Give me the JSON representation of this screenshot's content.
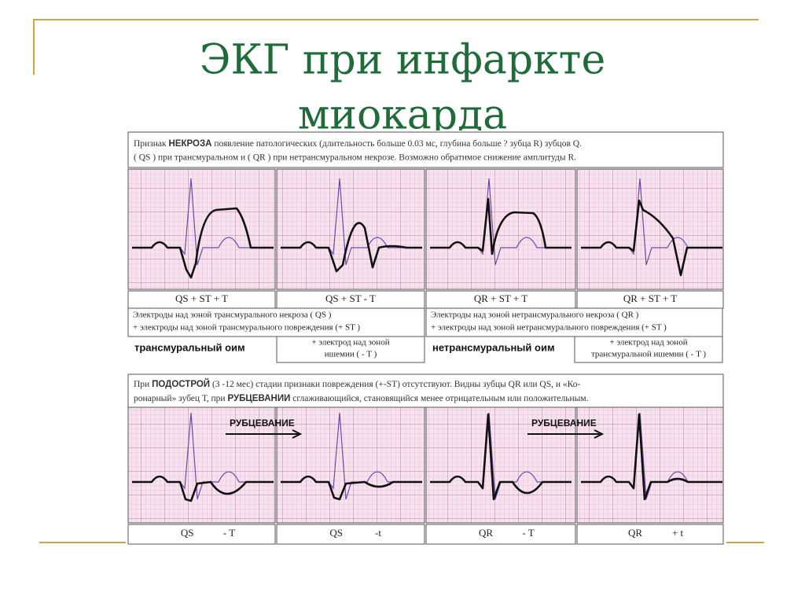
{
  "title": [
    "ЭКГ при инфаркте",
    "миокарда"
  ],
  "necrosis_note": {
    "line1": [
      "Признак ",
      "НЕКРОЗА",
      " появление патологических (длительность больше 0.03 мс, глубина больше ? зубца R) зубцов Q."
    ],
    "line2": "( QS ) при трансмуральном и ( QR ) при нетрансмуральном некрозе. Возможно обратимое  снижение амплитуды R."
  },
  "acute_labels": [
    "QS + ST + T",
    "QS + ST - T",
    "QR + ST + T",
    "QR + ST + T"
  ],
  "transmural": {
    "electrodes": [
      "Электроды над зоной трансмурального некроза ( QS )",
      "+ электроды над зоной трансмурального повреждения (+ ST )"
    ],
    "name": "трансмуральный оим",
    "ischemia": [
      "+ электрод над зоной",
      "ишемии ( - T )"
    ]
  },
  "nontransmural": {
    "electrodes": [
      "Электроды над зоной нетрансмурального некроза ( QR )",
      "+ электроды над зоной нетрансмурального повреждения (+ ST )"
    ],
    "name": "нетрансмуральный оим",
    "ischemia": [
      "+ электрод над зоной",
      "трансмуральной ишемии ( - T )"
    ]
  },
  "subacute_note": {
    "line1": [
      "При ",
      "ПОДОСТРОЙ",
      " (3 -12 мес) стадии признаки повреждения (+-ST) отсутствуют. Видны зубцы QR или QS, и «Ко-"
    ],
    "line2": [
      "ронарный» зубец Т, при ",
      "РУБЦЕВАНИИ",
      " сглаживающийся, становящийся менее отрицательным или положительным."
    ]
  },
  "scarring": [
    "РУБЦЕВАНИЕ",
    "РУБЦЕВАНИЕ"
  ],
  "subacute_labels": [
    [
      "QS",
      "- T"
    ],
    [
      "QS",
      "-t"
    ],
    [
      "QR",
      "- T"
    ],
    [
      "QR",
      "+ t"
    ]
  ]
}
